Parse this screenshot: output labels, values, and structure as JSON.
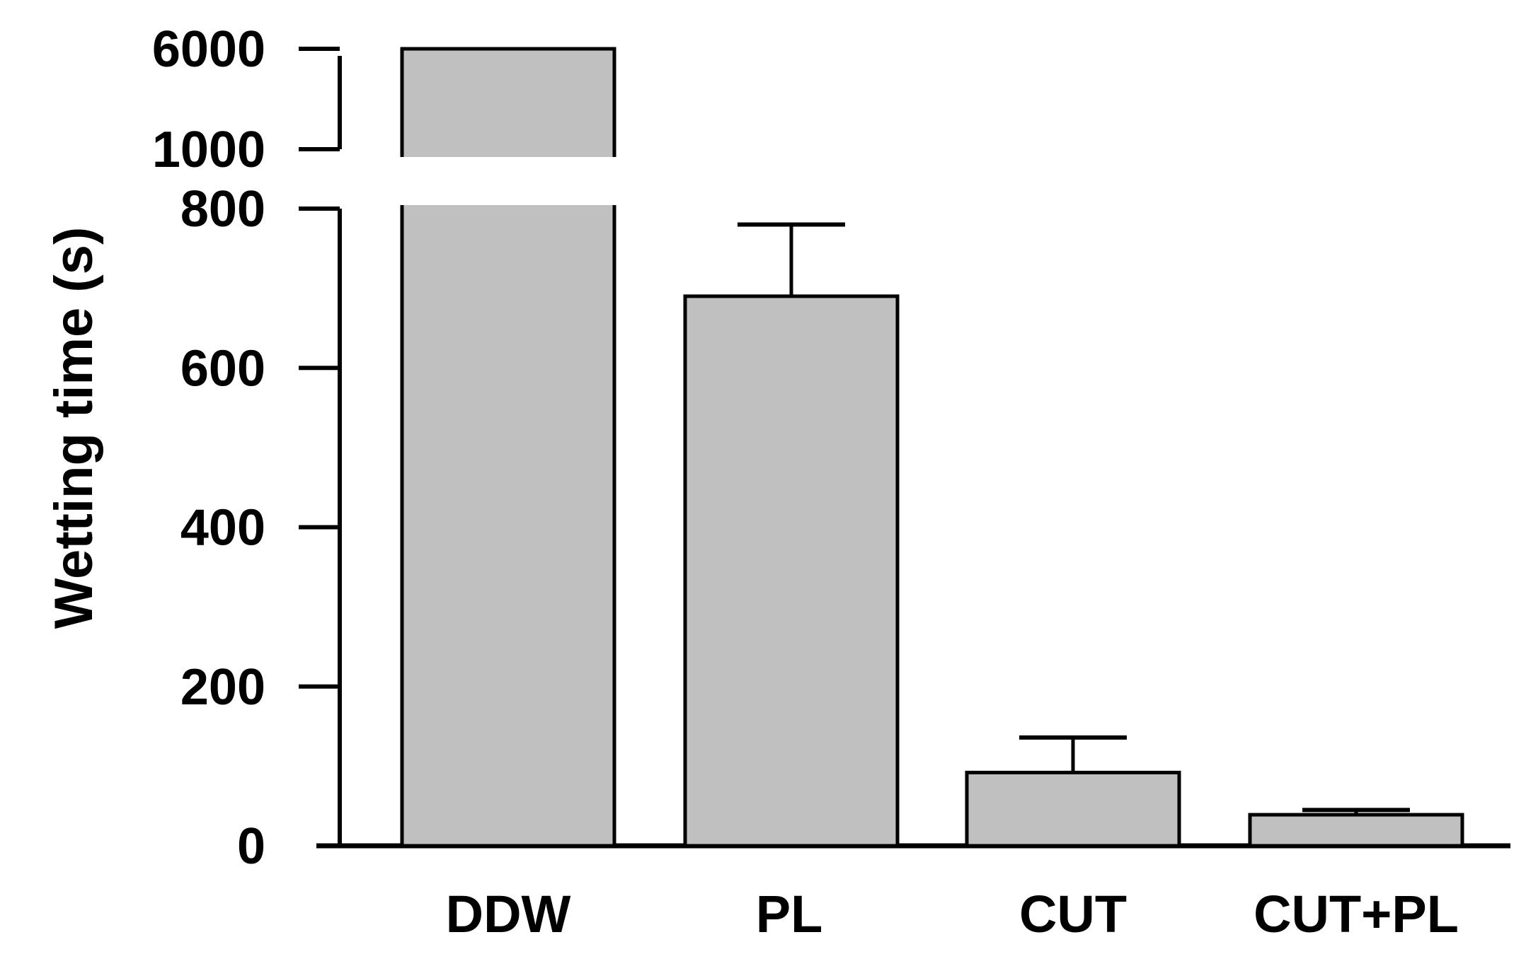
{
  "chart_data": {
    "type": "bar",
    "title": "",
    "xlabel": "",
    "ylabel": "Wetting time (s)",
    "categories": [
      "DDW",
      "PL",
      "CUT",
      "CUT+PL"
    ],
    "values": [
      6000,
      690,
      92,
      39
    ],
    "errors": [
      null,
      90,
      44,
      6
    ],
    "ylim": [
      0,
      6000
    ],
    "axis_break": {
      "lower": [
        0,
        800
      ],
      "upper": [
        1000,
        6000
      ]
    },
    "yticks": [
      {
        "value": 0,
        "label": "0"
      },
      {
        "value": 200,
        "label": "200"
      },
      {
        "value": 400,
        "label": "400"
      },
      {
        "value": 600,
        "label": "600"
      },
      {
        "value": 800,
        "label": "800"
      },
      {
        "value": 1000,
        "label": "1000"
      },
      {
        "value": 6000,
        "label": "6000"
      }
    ],
    "grid": false,
    "legend": "none",
    "colors": {
      "bar_fill": "#c0c0c0",
      "bar_stroke": "#000000",
      "axis": "#000000"
    }
  }
}
